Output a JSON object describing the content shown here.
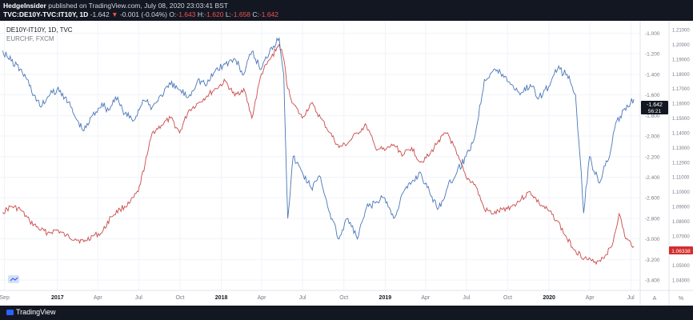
{
  "header": {
    "author": "HedgeInsider",
    "published": "published on TradingView.com, July 08, 2020 23:03:41 BST",
    "symbol": "TVC:DE10Y-TVC:IT10Y, 1D",
    "last": "-1.642",
    "change": "-0.001 (-0.04%)",
    "o_label": "O:",
    "o_value": "-1.643",
    "h_label": "H:",
    "h_value": "-1.620",
    "l_label": "L:",
    "l_value": "-1.658",
    "c_label": "C:",
    "c_value": "-1.642"
  },
  "legend": {
    "series1": "DE10Y-IT10Y, 1D, TVC",
    "series2": "EURCHF, FXCM"
  },
  "badges": {
    "blue_value": "-1.642",
    "blue_countdown": "56:21",
    "red_value": "1.06338"
  },
  "footer": {
    "brand": "TradingView",
    "auto_label": "A",
    "log_label": "%"
  },
  "colors": {
    "spread": "#4a76b8",
    "eurchf": "#c94a4a",
    "header_bg": "#131722"
  },
  "chart_data": {
    "type": "line",
    "x_tick_labels": [
      "Sep",
      "2017",
      "Apr",
      "Jul",
      "Oct",
      "2018",
      "Apr",
      "Jul",
      "Oct",
      "2019",
      "Apr",
      "Jul",
      "Oct",
      "2020",
      "Apr",
      "Jul"
    ],
    "left_axis": {
      "ticks": [
        -1.0,
        -1.2,
        -1.4,
        -1.6,
        -1.8,
        -2.0,
        -2.2,
        -2.4,
        -2.6,
        -2.8,
        -3.0,
        -3.2,
        -3.4
      ],
      "tick_labels": [
        "-1.000",
        "-1.200",
        "-1.400",
        "-1.600",
        "-1.800",
        "-2.000",
        "-2.200",
        "-2.400",
        "-2.600",
        "-2.800",
        "-3.000",
        "-3.200",
        "-3.400"
      ],
      "range": [
        -3.5,
        -0.88
      ]
    },
    "right_axis": {
      "ticks": [
        1.21,
        1.2,
        1.19,
        1.18,
        1.17,
        1.16,
        1.15,
        1.14,
        1.13,
        1.12,
        1.11,
        1.1,
        1.09,
        1.08,
        1.07,
        1.06,
        1.05,
        1.04
      ],
      "tick_labels": [
        "1.21000",
        "1.20000",
        "1.19000",
        "1.18000",
        "1.17000",
        "1.16000",
        "1.15000",
        "1.14000",
        "1.13000",
        "1.12000",
        "1.11000",
        "1.10000",
        "1.09000",
        "1.08000",
        "1.07000",
        "1.06000",
        "1.05000",
        "1.04000"
      ],
      "range": [
        1.033,
        1.216
      ]
    },
    "series": [
      {
        "name": "DE10Y-IT10Y, 1D, TVC",
        "axis": "left",
        "date": [
          "2016-09-01",
          "2016-09-20",
          "2016-10-10",
          "2016-10-25",
          "2016-11-10",
          "2016-11-25",
          "2016-12-10",
          "2016-12-31",
          "2017-01-20",
          "2017-02-10",
          "2017-03-01",
          "2017-03-20",
          "2017-04-10",
          "2017-04-25",
          "2017-05-10",
          "2017-05-31",
          "2017-06-20",
          "2017-07-10",
          "2017-07-31",
          "2017-08-20",
          "2017-09-10",
          "2017-09-30",
          "2017-10-20",
          "2017-11-10",
          "2017-11-30",
          "2017-12-20",
          "2018-01-10",
          "2018-01-31",
          "2018-02-20",
          "2018-03-10",
          "2018-03-31",
          "2018-04-20",
          "2018-05-10",
          "2018-05-20",
          "2018-05-29",
          "2018-06-10",
          "2018-06-30",
          "2018-07-20",
          "2018-08-10",
          "2018-08-31",
          "2018-09-20",
          "2018-10-10",
          "2018-10-31",
          "2018-11-20",
          "2018-12-10",
          "2018-12-31",
          "2019-01-20",
          "2019-02-10",
          "2019-03-01",
          "2019-03-20",
          "2019-04-10",
          "2019-04-30",
          "2019-05-20",
          "2019-06-10",
          "2019-06-30",
          "2019-07-20",
          "2019-08-10",
          "2019-08-31",
          "2019-09-20",
          "2019-10-10",
          "2019-10-31",
          "2019-11-20",
          "2019-12-10",
          "2019-12-31",
          "2020-01-20",
          "2020-02-10",
          "2020-02-29",
          "2020-03-10",
          "2020-03-18",
          "2020-03-31",
          "2020-04-20",
          "2020-05-10",
          "2020-05-31",
          "2020-06-20",
          "2020-07-08"
        ],
        "values": [
          -1.17,
          -1.27,
          -1.35,
          -1.45,
          -1.6,
          -1.72,
          -1.62,
          -1.55,
          -1.62,
          -1.82,
          -1.95,
          -1.8,
          -1.68,
          -1.75,
          -1.62,
          -1.78,
          -1.85,
          -1.65,
          -1.72,
          -1.6,
          -1.5,
          -1.55,
          -1.62,
          -1.45,
          -1.5,
          -1.35,
          -1.3,
          -1.25,
          -1.4,
          -1.18,
          -1.35,
          -1.15,
          -1.05,
          -1.4,
          -2.8,
          -2.2,
          -2.35,
          -2.5,
          -2.4,
          -2.75,
          -3.0,
          -2.8,
          -3.0,
          -2.7,
          -2.65,
          -2.6,
          -2.8,
          -2.55,
          -2.45,
          -2.35,
          -2.55,
          -2.7,
          -2.5,
          -2.35,
          -2.2,
          -2.0,
          -1.45,
          -1.35,
          -1.4,
          -1.5,
          -1.58,
          -1.5,
          -1.62,
          -1.52,
          -1.35,
          -1.4,
          -1.6,
          -2.2,
          -2.75,
          -2.2,
          -2.45,
          -2.25,
          -1.85,
          -1.75,
          -1.642
        ]
      },
      {
        "name": "EURCHF, FXCM",
        "axis": "right",
        "date": [
          "2016-09-01",
          "2016-09-20",
          "2016-10-10",
          "2016-10-31",
          "2016-11-20",
          "2016-12-10",
          "2016-12-31",
          "2017-01-20",
          "2017-02-10",
          "2017-03-01",
          "2017-03-20",
          "2017-04-10",
          "2017-04-30",
          "2017-05-20",
          "2017-06-10",
          "2017-06-30",
          "2017-07-20",
          "2017-07-31",
          "2017-08-20",
          "2017-09-10",
          "2017-09-30",
          "2017-10-20",
          "2017-11-10",
          "2017-11-30",
          "2017-12-20",
          "2018-01-10",
          "2018-01-31",
          "2018-02-20",
          "2018-03-10",
          "2018-03-31",
          "2018-04-20",
          "2018-05-10",
          "2018-05-20",
          "2018-05-29",
          "2018-06-10",
          "2018-06-30",
          "2018-07-20",
          "2018-08-10",
          "2018-08-31",
          "2018-09-20",
          "2018-10-10",
          "2018-10-31",
          "2018-11-20",
          "2018-12-10",
          "2018-12-31",
          "2019-01-20",
          "2019-02-10",
          "2019-03-01",
          "2019-03-20",
          "2019-04-10",
          "2019-04-30",
          "2019-05-20",
          "2019-06-10",
          "2019-06-30",
          "2019-07-20",
          "2019-08-10",
          "2019-08-31",
          "2019-09-20",
          "2019-10-10",
          "2019-10-31",
          "2019-11-20",
          "2019-12-10",
          "2019-12-31",
          "2020-01-20",
          "2020-02-10",
          "2020-02-29",
          "2020-03-20",
          "2020-04-10",
          "2020-04-30",
          "2020-05-20",
          "2020-06-05",
          "2020-06-20",
          "2020-07-08"
        ],
        "values": [
          1.086,
          1.09,
          1.088,
          1.08,
          1.075,
          1.072,
          1.074,
          1.07,
          1.068,
          1.066,
          1.07,
          1.072,
          1.083,
          1.088,
          1.092,
          1.1,
          1.125,
          1.14,
          1.145,
          1.15,
          1.14,
          1.155,
          1.16,
          1.165,
          1.17,
          1.175,
          1.165,
          1.17,
          1.15,
          1.18,
          1.19,
          1.2,
          1.19,
          1.17,
          1.16,
          1.15,
          1.16,
          1.15,
          1.14,
          1.13,
          1.133,
          1.14,
          1.145,
          1.13,
          1.128,
          1.132,
          1.125,
          1.13,
          1.12,
          1.125,
          1.135,
          1.14,
          1.125,
          1.11,
          1.105,
          1.088,
          1.085,
          1.088,
          1.09,
          1.095,
          1.1,
          1.092,
          1.087,
          1.08,
          1.068,
          1.06,
          1.055,
          1.052,
          1.055,
          1.063,
          1.085,
          1.068,
          1.063
        ]
      }
    ],
    "grid": true,
    "legend_placement": "top-left"
  }
}
